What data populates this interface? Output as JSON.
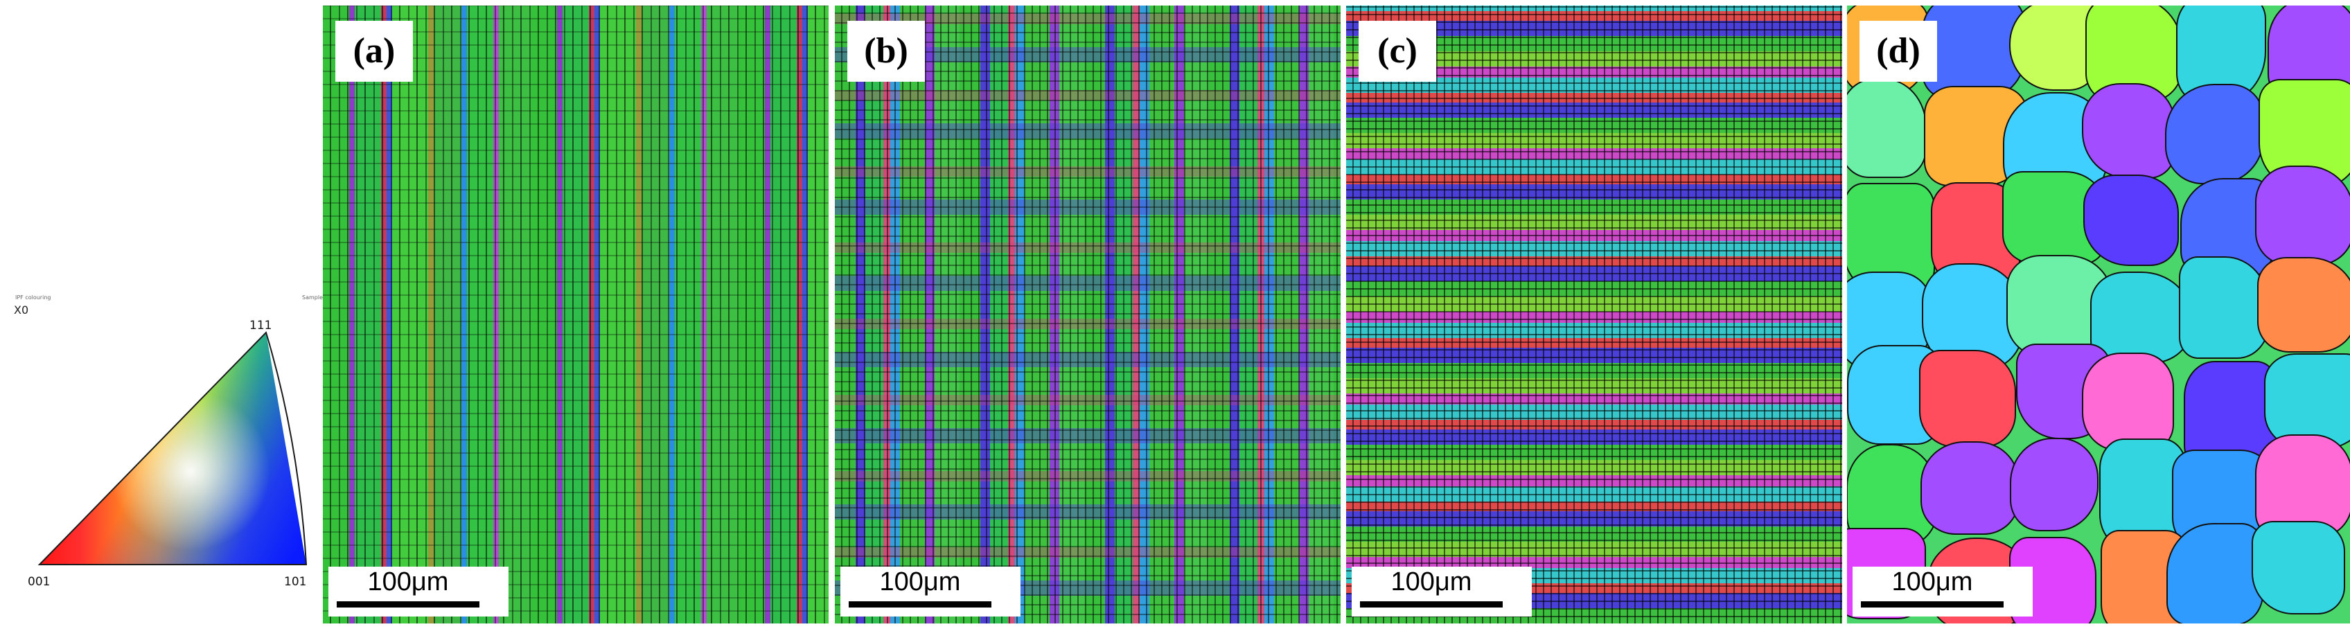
{
  "legend": {
    "caption_left": "IPF colouring",
    "caption_right": "Sample",
    "direction": "X0",
    "poles": {
      "p001": "001",
      "p101": "101",
      "p111": "111"
    },
    "colors": {
      "p001": "#ff0d0d",
      "p101": "#0ee86a",
      "p111": "#0a1bff"
    }
  },
  "panels": [
    {
      "label": "(a)",
      "scale_bar": "100μm"
    },
    {
      "label": "(b)",
      "scale_bar": "100μm"
    },
    {
      "label": "(c)",
      "scale_bar": "100μm"
    },
    {
      "label": "(d)",
      "scale_bar": "100μm"
    }
  ]
}
